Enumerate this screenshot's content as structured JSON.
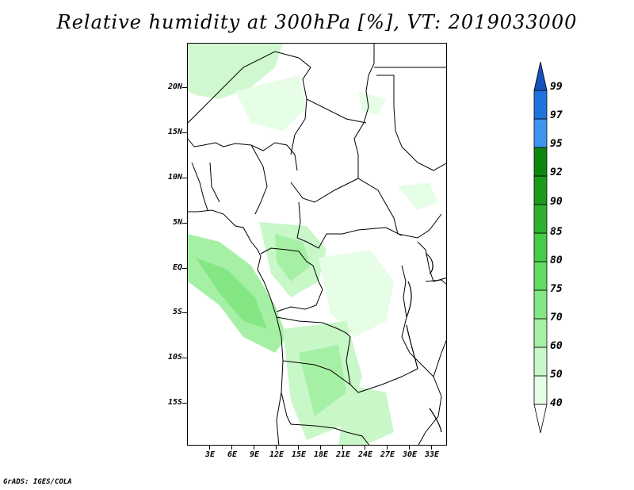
{
  "title": "Relative humidity at 300hPa [%], VT: 2019033000",
  "credit": "GrADS: IGES/COLA",
  "map": {
    "lat_labels": [
      "20N",
      "15N",
      "10N",
      "5N",
      "EQ",
      "5S",
      "10S",
      "15S"
    ],
    "lon_labels": [
      "3E",
      "6E",
      "9E",
      "12E",
      "15E",
      "18E",
      "21E",
      "24E",
      "27E",
      "30E",
      "33E"
    ]
  },
  "colorbar": {
    "levels": [
      "40",
      "50",
      "60",
      "70",
      "75",
      "80",
      "85",
      "90",
      "92",
      "95",
      "97",
      "99"
    ],
    "colors": [
      "#ffffff",
      "#e6fde6",
      "#c8f7c8",
      "#a6f0a6",
      "#84e784",
      "#62dc62",
      "#46cc46",
      "#2eb22e",
      "#1b9a1b",
      "#0e860e",
      "#3d95f0",
      "#1f73dd",
      "#1552bd"
    ]
  }
}
